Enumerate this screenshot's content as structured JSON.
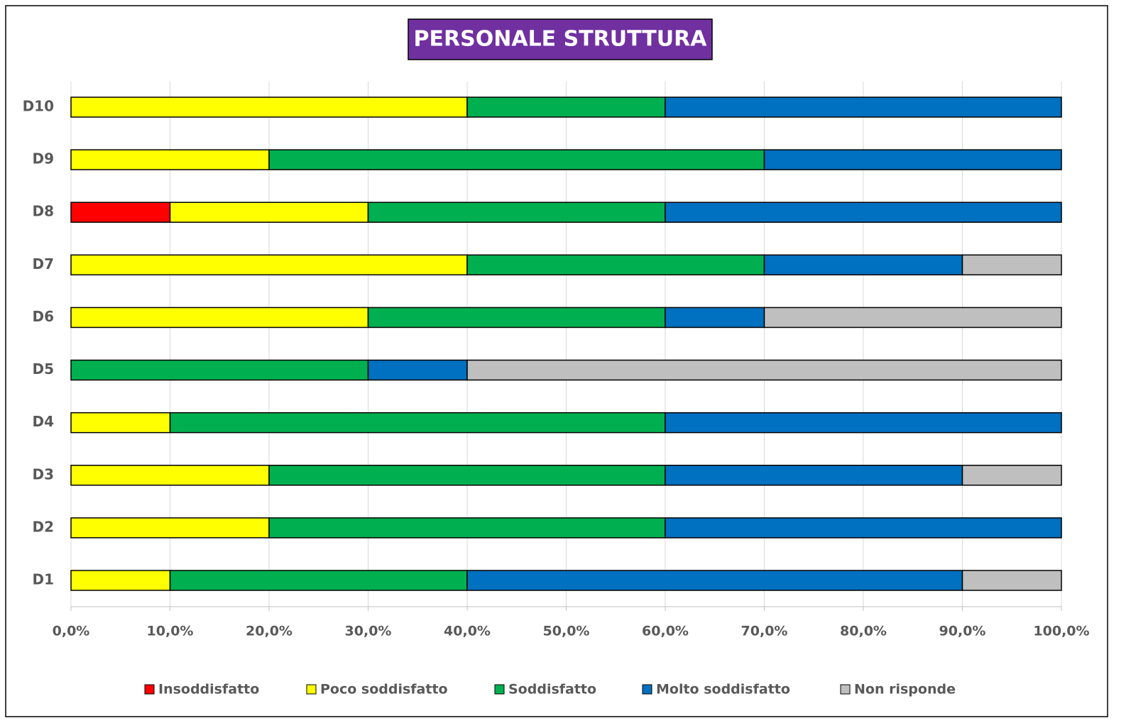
{
  "chart_data": {
    "type": "stacked_barh",
    "title": "PERSONALE STRUTTURA",
    "categories": [
      "D1",
      "D2",
      "D3",
      "D4",
      "D5",
      "D6",
      "D7",
      "D8",
      "D9",
      "D10"
    ],
    "series": [
      {
        "name": "Insoddisfatto",
        "color": "#ff0000",
        "values": [
          0,
          0,
          0,
          0,
          0,
          0,
          0,
          10,
          0,
          0
        ]
      },
      {
        "name": "Poco soddisfatto",
        "color": "#ffff00",
        "values": [
          10,
          20,
          20,
          10,
          0,
          30,
          40,
          20,
          20,
          40
        ]
      },
      {
        "name": "Soddisfatto",
        "color": "#00b050",
        "values": [
          30,
          40,
          40,
          50,
          30,
          30,
          30,
          30,
          50,
          20
        ]
      },
      {
        "name": "Molto soddisfatto",
        "color": "#0070c0",
        "values": [
          50,
          40,
          30,
          40,
          10,
          10,
          20,
          40,
          30,
          40
        ]
      },
      {
        "name": "Non risponde",
        "color": "#bfbfbf",
        "values": [
          10,
          0,
          10,
          0,
          60,
          30,
          10,
          0,
          0,
          0
        ]
      }
    ],
    "xlim": [
      0,
      100
    ],
    "xticks": [
      {
        "value": 0,
        "label": "0,0%"
      },
      {
        "value": 10,
        "label": "10,0%"
      },
      {
        "value": 20,
        "label": "20,0%"
      },
      {
        "value": 30,
        "label": "30,0%"
      },
      {
        "value": 40,
        "label": "40,0%"
      },
      {
        "value": 50,
        "label": "50,0%"
      },
      {
        "value": 60,
        "label": "60,0%"
      },
      {
        "value": 70,
        "label": "70,0%"
      },
      {
        "value": 80,
        "label": "80,0%"
      },
      {
        "value": 90,
        "label": "90,0%"
      },
      {
        "value": 100,
        "label": "100,0%"
      }
    ],
    "grid": true,
    "legend": "bottom"
  }
}
